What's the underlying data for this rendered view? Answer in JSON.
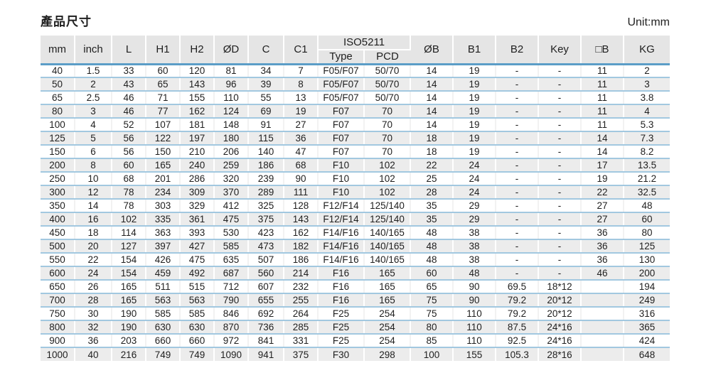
{
  "page": {
    "title": "產品尺寸",
    "unit_label": "Unit:mm"
  },
  "colors": {
    "header_bg": "#e5e5e5",
    "alt_row_bg": "#ececec",
    "header_rule_blue": "#5b9dc7",
    "row_rule_blue": "#a2c8e0",
    "text": "#1f1f1f"
  },
  "table": {
    "columns_left": [
      "mm",
      "inch",
      "L",
      "H1",
      "H2",
      "ØD",
      "C",
      "C1"
    ],
    "group": {
      "label": "ISO5211",
      "sub": [
        "Type",
        "PCD"
      ]
    },
    "columns_right": [
      "ØB",
      "B1",
      "B2",
      "Key",
      "□B",
      "KG"
    ],
    "rows": [
      [
        "40",
        "1.5",
        "33",
        "60",
        "120",
        "81",
        "34",
        "7",
        "F05/F07",
        "50/70",
        "14",
        "19",
        "-",
        "-",
        "11",
        "2"
      ],
      [
        "50",
        "2",
        "43",
        "65",
        "143",
        "96",
        "39",
        "8",
        "F05/F07",
        "50/70",
        "14",
        "19",
        "-",
        "-",
        "11",
        "3"
      ],
      [
        "65",
        "2.5",
        "46",
        "71",
        "155",
        "110",
        "55",
        "13",
        "F05/F07",
        "50/70",
        "14",
        "19",
        "-",
        "-",
        "11",
        "3.8"
      ],
      [
        "80",
        "3",
        "46",
        "77",
        "162",
        "124",
        "69",
        "19",
        "F07",
        "70",
        "14",
        "19",
        "-",
        "-",
        "11",
        "4"
      ],
      [
        "100",
        "4",
        "52",
        "107",
        "181",
        "148",
        "91",
        "27",
        "F07",
        "70",
        "14",
        "19",
        "-",
        "-",
        "11",
        "5.3"
      ],
      [
        "125",
        "5",
        "56",
        "122",
        "197",
        "180",
        "115",
        "36",
        "F07",
        "70",
        "18",
        "19",
        "-",
        "-",
        "14",
        "7.3"
      ],
      [
        "150",
        "6",
        "56",
        "150",
        "210",
        "206",
        "140",
        "47",
        "F07",
        "70",
        "18",
        "19",
        "-",
        "-",
        "14",
        "8.2"
      ],
      [
        "200",
        "8",
        "60",
        "165",
        "240",
        "259",
        "186",
        "68",
        "F10",
        "102",
        "22",
        "24",
        "-",
        "-",
        "17",
        "13.5"
      ],
      [
        "250",
        "10",
        "68",
        "201",
        "286",
        "320",
        "239",
        "90",
        "F10",
        "102",
        "25",
        "24",
        "-",
        "-",
        "19",
        "21.2"
      ],
      [
        "300",
        "12",
        "78",
        "234",
        "309",
        "370",
        "289",
        "111",
        "F10",
        "102",
        "28",
        "24",
        "-",
        "-",
        "22",
        "32.5"
      ],
      [
        "350",
        "14",
        "78",
        "303",
        "329",
        "412",
        "325",
        "128",
        "F12/F14",
        "125/140",
        "35",
        "29",
        "-",
        "-",
        "27",
        "48"
      ],
      [
        "400",
        "16",
        "102",
        "335",
        "361",
        "475",
        "375",
        "143",
        "F12/F14",
        "125/140",
        "35",
        "29",
        "-",
        "-",
        "27",
        "60"
      ],
      [
        "450",
        "18",
        "114",
        "363",
        "393",
        "530",
        "423",
        "162",
        "F14/F16",
        "140/165",
        "48",
        "38",
        "-",
        "-",
        "36",
        "80"
      ],
      [
        "500",
        "20",
        "127",
        "397",
        "427",
        "585",
        "473",
        "182",
        "F14/F16",
        "140/165",
        "48",
        "38",
        "-",
        "-",
        "36",
        "125"
      ],
      [
        "550",
        "22",
        "154",
        "426",
        "475",
        "635",
        "507",
        "186",
        "F14/F16",
        "140/165",
        "48",
        "38",
        "-",
        "-",
        "36",
        "130"
      ],
      [
        "600",
        "24",
        "154",
        "459",
        "492",
        "687",
        "560",
        "214",
        "F16",
        "165",
        "60",
        "48",
        "-",
        "-",
        "46",
        "200"
      ],
      [
        "650",
        "26",
        "165",
        "511",
        "515",
        "712",
        "607",
        "232",
        "F16",
        "165",
        "65",
        "90",
        "69.5",
        "18*12",
        "",
        "194"
      ],
      [
        "700",
        "28",
        "165",
        "563",
        "563",
        "790",
        "655",
        "255",
        "F16",
        "165",
        "75",
        "90",
        "79.2",
        "20*12",
        "",
        "249"
      ],
      [
        "750",
        "30",
        "190",
        "585",
        "585",
        "846",
        "692",
        "264",
        "F25",
        "254",
        "75",
        "110",
        "79.2",
        "20*12",
        "",
        "316"
      ],
      [
        "800",
        "32",
        "190",
        "630",
        "630",
        "870",
        "736",
        "285",
        "F25",
        "254",
        "80",
        "110",
        "87.5",
        "24*16",
        "",
        "365"
      ],
      [
        "900",
        "36",
        "203",
        "660",
        "660",
        "972",
        "841",
        "331",
        "F25",
        "254",
        "85",
        "110",
        "92.5",
        "24*16",
        "",
        "424"
      ],
      [
        "1000",
        "40",
        "216",
        "749",
        "749",
        "1090",
        "941",
        "375",
        "F30",
        "298",
        "100",
        "155",
        "105.3",
        "28*16",
        "",
        "648"
      ]
    ]
  }
}
